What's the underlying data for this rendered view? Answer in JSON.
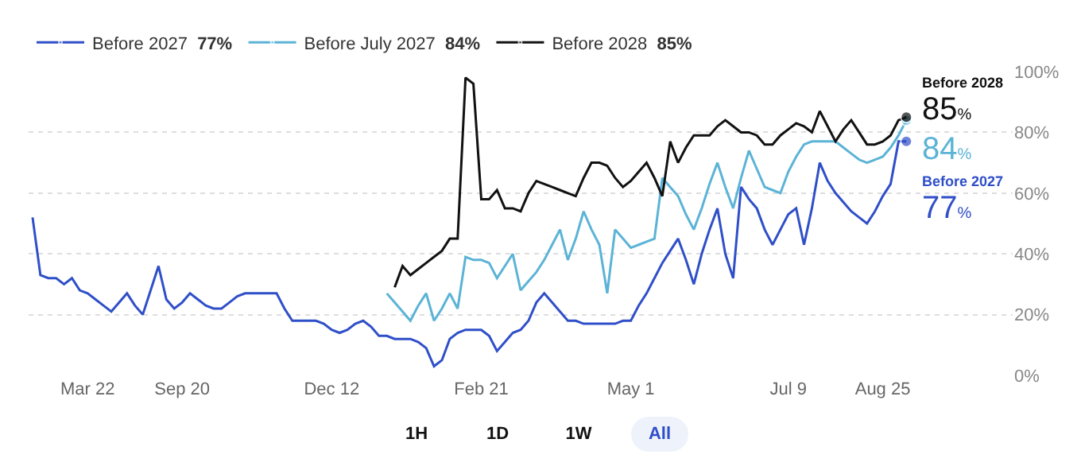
{
  "chart_data": {
    "type": "line",
    "categories": [
      null,
      null,
      null,
      null,
      null,
      null,
      null,
      "Mar 22",
      null,
      null,
      null,
      null,
      null,
      null,
      null,
      null,
      null,
      null,
      null,
      "Sep 20",
      null,
      null,
      null,
      null,
      null,
      null,
      null,
      null,
      null,
      null,
      null,
      null,
      null,
      null,
      null,
      null,
      null,
      null,
      "Dec 12",
      null,
      null,
      null,
      null,
      null,
      null,
      null,
      null,
      null,
      null,
      null,
      null,
      null,
      null,
      null,
      null,
      null,
      null,
      "Feb 21",
      null,
      null,
      null,
      null,
      null,
      null,
      null,
      null,
      null,
      null,
      null,
      null,
      null,
      null,
      null,
      null,
      null,
      null,
      "May 1",
      null,
      null,
      null,
      null,
      null,
      null,
      null,
      null,
      null,
      null,
      null,
      null,
      null,
      null,
      null,
      null,
      null,
      null,
      null,
      "Jul 9",
      null,
      null,
      null,
      null,
      null,
      null,
      null,
      null,
      null,
      null,
      null,
      "Aug 25",
      null,
      null,
      null
    ],
    "ylim": [
      0,
      100
    ],
    "yticks": [
      {
        "value": 0,
        "label": "0%"
      },
      {
        "value": 20,
        "label": "20%"
      },
      {
        "value": 40,
        "label": "40%"
      },
      {
        "value": 60,
        "label": "60%"
      },
      {
        "value": 80,
        "label": "80%"
      },
      {
        "value": 100,
        "label": "100%"
      }
    ],
    "grid": "y",
    "legend": "top left",
    "line_style": "solid",
    "series": [
      {
        "name": "Before 2027 77%",
        "color": "#2f4fc8",
        "values": [
          52,
          33,
          32,
          32,
          30,
          32,
          28,
          27,
          25,
          23,
          21,
          24,
          27,
          23,
          20,
          28,
          36,
          25,
          22,
          24,
          27,
          25,
          23,
          22,
          22,
          24,
          26,
          27,
          27,
          27,
          27,
          27,
          22,
          18,
          18,
          18,
          18,
          17,
          15,
          14,
          15,
          17,
          18,
          16,
          13,
          13,
          12,
          12,
          12,
          11,
          9,
          3,
          5,
          12,
          14,
          15,
          15,
          15,
          13,
          8,
          11,
          14,
          15,
          18,
          24,
          27,
          24,
          21,
          18,
          18,
          17,
          17,
          17,
          17,
          17,
          18,
          18,
          23,
          27,
          32,
          37,
          41,
          45,
          38,
          30,
          40,
          48,
          55,
          40,
          32,
          62,
          58,
          55,
          48,
          43,
          48,
          53,
          55,
          43,
          55,
          70,
          64,
          60,
          57,
          54,
          52,
          50,
          54,
          59,
          63,
          77,
          77
        ],
        "value_labels": [
          null,
          null,
          null,
          null,
          null,
          null,
          null,
          null,
          null,
          null,
          null,
          null,
          null,
          null,
          null,
          null,
          null,
          null,
          null,
          null,
          null,
          null,
          null,
          null,
          null,
          null,
          null,
          null,
          null,
          null,
          null,
          null,
          null,
          null,
          null,
          null,
          null,
          null,
          null,
          null,
          null,
          null,
          null,
          null,
          null,
          null,
          null,
          null,
          null,
          null,
          null,
          null,
          null,
          null,
          null,
          null,
          null,
          null,
          null,
          null,
          null,
          null,
          null,
          null,
          null,
          null,
          null,
          null,
          null,
          null,
          null,
          null,
          null,
          null,
          null,
          null,
          null,
          null,
          null,
          null,
          null,
          null,
          null,
          null,
          null,
          null,
          null,
          null,
          null,
          null,
          null,
          null,
          null,
          null,
          null,
          null,
          null,
          null,
          null,
          null,
          null,
          null,
          null,
          null,
          null,
          null,
          null,
          null,
          null,
          null,
          null,
          "Before 2027 77%"
        ]
      },
      {
        "name": "Before July 2027 84%",
        "color": "#5bb3d6",
        "values": [
          null,
          null,
          null,
          null,
          null,
          null,
          null,
          null,
          null,
          null,
          null,
          null,
          null,
          null,
          null,
          null,
          null,
          null,
          null,
          null,
          null,
          null,
          null,
          null,
          null,
          null,
          null,
          null,
          null,
          null,
          null,
          null,
          null,
          null,
          null,
          null,
          null,
          null,
          null,
          null,
          null,
          null,
          null,
          null,
          null,
          27,
          24,
          21,
          18,
          23,
          27,
          18,
          22,
          27,
          22,
          39,
          38,
          38,
          37,
          32,
          36,
          40,
          28,
          31,
          34,
          38,
          43,
          48,
          38,
          45,
          54,
          48,
          43,
          27,
          48,
          45,
          42,
          43,
          44,
          45,
          65,
          62,
          59,
          53,
          48,
          55,
          63,
          70,
          62,
          55,
          65,
          74,
          68,
          62,
          61,
          60,
          67,
          72,
          76,
          77,
          77,
          77,
          77,
          75,
          73,
          71,
          70,
          71,
          72,
          75,
          79,
          84
        ],
        "value_labels": [
          null,
          null,
          null,
          null,
          null,
          null,
          null,
          null,
          null,
          null,
          null,
          null,
          null,
          null,
          null,
          null,
          null,
          null,
          null,
          null,
          null,
          null,
          null,
          null,
          null,
          null,
          null,
          null,
          null,
          null,
          null,
          null,
          null,
          null,
          null,
          null,
          null,
          null,
          null,
          null,
          null,
          null,
          null,
          null,
          null,
          null,
          null,
          null,
          null,
          null,
          null,
          null,
          null,
          null,
          null,
          null,
          null,
          null,
          null,
          null,
          null,
          null,
          null,
          null,
          null,
          null,
          null,
          null,
          null,
          null,
          null,
          null,
          null,
          null,
          null,
          null,
          null,
          null,
          null,
          null,
          null,
          null,
          null,
          null,
          null,
          null,
          null,
          null,
          null,
          null,
          null,
          null,
          null,
          null,
          null,
          null,
          null,
          null,
          null,
          null,
          null,
          null,
          null,
          null,
          null,
          null,
          null,
          null,
          null,
          null,
          null,
          "84%"
        ]
      },
      {
        "name": "Before 2028 85%",
        "color": "#111111",
        "values": [
          null,
          null,
          null,
          null,
          null,
          null,
          null,
          null,
          null,
          null,
          null,
          null,
          null,
          null,
          null,
          null,
          null,
          null,
          null,
          null,
          null,
          null,
          null,
          null,
          null,
          null,
          null,
          null,
          null,
          null,
          null,
          null,
          null,
          null,
          null,
          null,
          null,
          null,
          null,
          null,
          null,
          null,
          null,
          null,
          null,
          null,
          29,
          36,
          33,
          35,
          37,
          39,
          41,
          45,
          45,
          98,
          96,
          58,
          58,
          61,
          55,
          55,
          54,
          60,
          64,
          63,
          62,
          61,
          60,
          59,
          65,
          70,
          70,
          69,
          65,
          62,
          64,
          67,
          70,
          65,
          59,
          77,
          70,
          75,
          79,
          79,
          79,
          82,
          84,
          82,
          80,
          80,
          79,
          76,
          76,
          79,
          81,
          83,
          82,
          80,
          87,
          82,
          77,
          81,
          84,
          80,
          76,
          76,
          77,
          79,
          84,
          85
        ],
        "value_labels": [
          null,
          null,
          null,
          null,
          null,
          null,
          null,
          null,
          null,
          null,
          null,
          null,
          null,
          null,
          null,
          null,
          null,
          null,
          null,
          null,
          null,
          null,
          null,
          null,
          null,
          null,
          null,
          null,
          null,
          null,
          null,
          null,
          null,
          null,
          null,
          null,
          null,
          null,
          null,
          null,
          null,
          null,
          null,
          null,
          null,
          null,
          null,
          null,
          null,
          null,
          null,
          null,
          null,
          null,
          null,
          null,
          null,
          null,
          null,
          null,
          null,
          null,
          null,
          null,
          null,
          null,
          null,
          null,
          null,
          null,
          null,
          null,
          null,
          null,
          null,
          null,
          null,
          null,
          null,
          null,
          null,
          null,
          null,
          null,
          null,
          null,
          null,
          null,
          null,
          null,
          null,
          null,
          null,
          null,
          null,
          null,
          null,
          null,
          null,
          null,
          null,
          null,
          null,
          null,
          null,
          null,
          null,
          null,
          null,
          null,
          null,
          "Before 2028 85%"
        ]
      }
    ],
    "annotations": [
      "1H",
      "1D",
      "1W",
      "All"
    ]
  }
}
